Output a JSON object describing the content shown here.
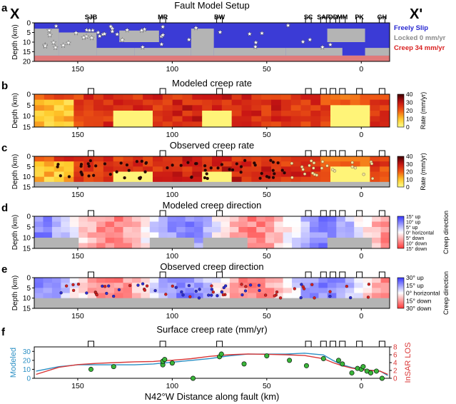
{
  "figure": {
    "endpoint_left": "X",
    "endpoint_right": "X'",
    "xlabel": "N42°W Distance along fault (km)",
    "x_ticks": [
      "150",
      "100",
      "50",
      "0"
    ],
    "x_tick_values": [
      150,
      100,
      50,
      0
    ],
    "xlim": [
      173,
      -15
    ],
    "depth_label": "Depth (km)",
    "colors": {
      "slip_blue": "#3b3bd6",
      "locked_gray": "#b4b4b4",
      "creep_red": "#e07a7a",
      "modeled_line": "#2a8fc4",
      "insar_line": "#d93636",
      "gps_marker": "#3ab53a"
    }
  },
  "stations": [
    {
      "label": "SJB",
      "x": 143
    },
    {
      "label": "MR",
      "x": 105
    },
    {
      "label": "BW",
      "x": 75
    },
    {
      "label": "SC",
      "x": 28
    },
    {
      "label": "SAF",
      "x": 20
    },
    {
      "label": "OD",
      "x": 15
    },
    {
      "label": "MM",
      "x": 10
    },
    {
      "label": "PK",
      "x": 1
    },
    {
      "label": "GH",
      "x": -11
    }
  ],
  "panels": [
    {
      "letter": "a",
      "title": "Fault Model Setup",
      "type": "setup",
      "depth_ticks": [
        "0",
        "5",
        "10",
        "15",
        "20"
      ],
      "depth_max": 20,
      "legend": [
        {
          "label": "Freely Slip",
          "color": "#2626d0"
        },
        {
          "label": "Locked 0 mm/yr",
          "color": "#8a8a8a"
        },
        {
          "label": "Creep 34 mm/yr",
          "color": "#d92020"
        }
      ]
    },
    {
      "letter": "b",
      "title": "Modeled creep rate",
      "type": "rate_model",
      "depth_ticks": [
        "0",
        "5",
        "10",
        "15"
      ],
      "depth_max": 15,
      "colorbar": {
        "label": "Rate (mm/yr)",
        "ticks": [
          "40",
          "30",
          "20",
          "10",
          "0"
        ]
      }
    },
    {
      "letter": "c",
      "title": "Observed creep rate",
      "type": "rate_obs",
      "depth_ticks": [
        "0",
        "5",
        "10",
        "15"
      ],
      "depth_max": 15,
      "colorbar": {
        "label": "Rate (mm/yr)",
        "ticks": [
          "40",
          "30",
          "20",
          "10",
          "0"
        ]
      }
    },
    {
      "letter": "d",
      "title": "Modeled creep direction",
      "type": "dir_model",
      "depth_ticks": [
        "0",
        "5",
        "10",
        "15"
      ],
      "depth_max": 15,
      "colorbar": {
        "label": "Creep direction",
        "ticks": [
          "15° up",
          "10° up",
          "5° up",
          "0° horizontal",
          "5° down",
          "10° down",
          "15° down"
        ]
      }
    },
    {
      "letter": "e",
      "title": "Observed creep direction",
      "type": "dir_obs",
      "depth_ticks": [
        "0",
        "5",
        "10",
        "15"
      ],
      "depth_max": 15,
      "colorbar": {
        "label": "Creep direction",
        "ticks": [
          "30° up",
          "15° up",
          "0° horizontal",
          "15° down",
          "30° down"
        ]
      }
    },
    {
      "letter": "f",
      "title": "Surface creep rate (mm/yr)",
      "type": "surface"
    }
  ],
  "chart_data": {
    "type": "line",
    "title": "Surface creep rate (mm/yr)",
    "xlabel": "N42°W Distance along fault (km)",
    "ylabel_left": "Modeled",
    "ylabel_right": "InSAR LOS",
    "xlim": [
      173,
      -15
    ],
    "ylim_left": [
      0,
      35
    ],
    "yticks_left": [
      "0",
      "10",
      "20",
      "30"
    ],
    "ylim_right": [
      0,
      8
    ],
    "yticks_right": [
      "0",
      "2",
      "4",
      "6",
      "8"
    ],
    "series": [
      {
        "name": "Modeled",
        "axis": "left",
        "x": [
          172,
          160,
          150,
          140,
          130,
          120,
          110,
          105,
          100,
          90,
          80,
          70,
          60,
          50,
          40,
          30,
          20,
          15,
          10,
          5,
          0,
          -5,
          -10,
          -14
        ],
        "y": [
          8,
          13,
          15,
          15,
          15,
          15,
          16,
          17,
          18,
          20,
          22,
          25,
          27,
          27,
          27,
          28,
          26,
          20,
          15,
          12,
          10,
          9,
          8,
          3
        ]
      },
      {
        "name": "InSAR LOS",
        "axis": "right",
        "x": [
          172,
          160,
          150,
          140,
          130,
          120,
          110,
          105,
          100,
          90,
          80,
          70,
          60,
          50,
          40,
          30,
          20,
          15,
          10,
          5,
          0,
          -5,
          -10,
          -14
        ],
        "y": [
          1.0,
          2.8,
          3.5,
          3.8,
          4.0,
          4.2,
          4.3,
          4.5,
          4.6,
          5.0,
          5.6,
          6.0,
          6.2,
          6.1,
          6.0,
          5.8,
          5.0,
          4.0,
          3.2,
          2.6,
          2.2,
          2.0,
          1.8,
          1.0
        ]
      },
      {
        "name": "GPS",
        "axis": "left",
        "x": [
          143,
          131,
          105,
          105,
          104,
          100,
          89,
          75,
          74,
          62,
          50,
          38,
          29,
          20,
          12,
          10,
          5,
          2,
          0,
          -1,
          -3,
          -5,
          -8,
          -11
        ],
        "y": [
          10,
          13,
          15,
          19,
          21,
          17,
          0,
          24,
          27,
          16,
          25,
          20,
          14,
          22,
          20,
          16,
          6,
          11,
          10,
          13,
          8,
          6,
          8,
          0
        ]
      }
    ]
  }
}
